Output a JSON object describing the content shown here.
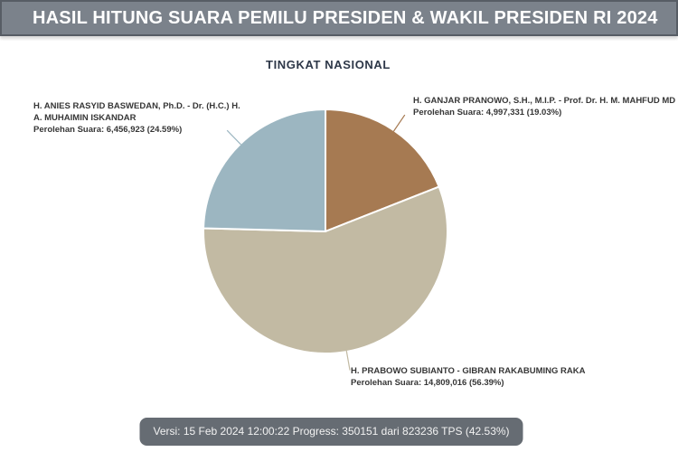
{
  "header": {
    "title": "HASIL HITUNG SUARA PEMILU PRESIDEN & WAKIL PRESIDEN RI 2024"
  },
  "chart_data": {
    "type": "pie",
    "title": "TINGKAT NASIONAL",
    "start_angle_deg": 0,
    "direction": "clockwise",
    "legend_position": "callout-labels",
    "slices": [
      {
        "name": "H. GANJAR PRANOWO, S.H., M.I.P. - Prof. Dr. H. M. MAHFUD MD",
        "name_lines": [
          "H. GANJAR PRANOWO, S.H., M.I.P. - Prof. Dr. H. M. MAHFUD MD"
        ],
        "votes": 4997331,
        "percent": 19.03,
        "votes_label": "Perolehan Suara: 4,997,331 (19.03%)",
        "color": "#a67a52"
      },
      {
        "name": "H. PRABOWO SUBIANTO - GIBRAN RAKABUMING RAKA",
        "name_lines": [
          "H. PRABOWO SUBIANTO - GIBRAN RAKABUMING RAKA"
        ],
        "votes": 14809016,
        "percent": 56.39,
        "votes_label": "Perolehan Suara: 14,809,016 (56.39%)",
        "color": "#c2baa3"
      },
      {
        "name": "H. ANIES RASYID BASWEDAN, Ph.D. - Dr. (H.C.) H. A. MUHAIMIN ISKANDAR",
        "name_lines": [
          "H. ANIES RASYID BASWEDAN, Ph.D. - Dr. (H.C.) H.",
          "A. MUHAIMIN ISKANDAR"
        ],
        "votes": 6456923,
        "percent": 24.59,
        "votes_label": "Perolehan Suara: 6,456,923 (24.59%)",
        "color": "#9cb6c1"
      }
    ]
  },
  "footer": {
    "status": "Versi: 15 Feb 2024 12:00:22 Progress: 350151 dari 823236 TPS (42.53%)"
  }
}
